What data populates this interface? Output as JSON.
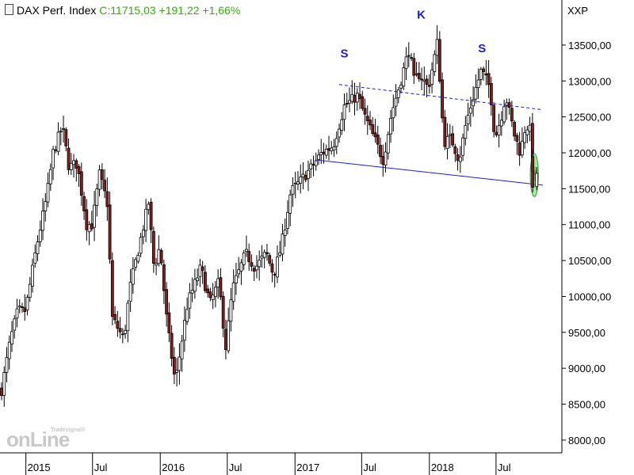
{
  "header": {
    "title": "DAX Perf. Index",
    "quote": "C:11715,03 +191,22 +1,66%"
  },
  "axis_symbol": "XXP",
  "watermark": {
    "top": "Tradesignal®",
    "main": "onLine"
  },
  "colors": {
    "up": "#ffffff",
    "down": "#8b1a1a",
    "wick": "#000000",
    "trend": "#1c1cd0",
    "highlight": "#7fe07f",
    "quote": "#2db200"
  },
  "chart_data": {
    "type": "candlestick",
    "title": "DAX Perf. Index",
    "ylim": [
      7900,
      14050
    ],
    "y_ticks": [
      "13500,00",
      "13000,00",
      "12500,00",
      "12000,00",
      "11500,00",
      "11000,00",
      "10500,00",
      "10000,00",
      "9500,00",
      "9000,00",
      "8500,00",
      "8000,00"
    ],
    "y_tick_values": [
      13500,
      13000,
      12500,
      12000,
      11500,
      11000,
      10500,
      10000,
      9500,
      9000,
      8500,
      8000
    ],
    "x_ticks": [
      "2015",
      "Jul",
      "2016",
      "Jul",
      "2017",
      "Jul",
      "2018",
      "Jul"
    ],
    "x_tick_dates": [
      "2015-01-01",
      "2015-07-01",
      "2016-01-01",
      "2016-07-01",
      "2017-01-01",
      "2017-07-01",
      "2018-01-01",
      "2018-07-01"
    ],
    "date_range": [
      "2014-10-27",
      "2018-10-19"
    ],
    "closing_anchors": [
      [
        "2014-10-27",
        8700
      ],
      [
        "2014-11-20",
        9400
      ],
      [
        "2014-12-10",
        9800
      ],
      [
        "2014-12-31",
        9800
      ],
      [
        "2015-01-30",
        10700
      ],
      [
        "2015-02-27",
        11400
      ],
      [
        "2015-03-16",
        12000
      ],
      [
        "2015-04-10",
        12370
      ],
      [
        "2015-04-28",
        11800
      ],
      [
        "2015-05-20",
        11850
      ],
      [
        "2015-06-15",
        11000
      ],
      [
        "2015-06-30",
        11000
      ],
      [
        "2015-07-20",
        11700
      ],
      [
        "2015-08-10",
        11300
      ],
      [
        "2015-08-24",
        9700
      ],
      [
        "2015-09-24",
        9400
      ],
      [
        "2015-10-10",
        10100
      ],
      [
        "2015-11-30",
        11300
      ],
      [
        "2015-12-15",
        10400
      ],
      [
        "2015-12-31",
        10700
      ],
      [
        "2016-01-20",
        9600
      ],
      [
        "2016-02-11",
        8800
      ],
      [
        "2016-03-15",
        9900
      ],
      [
        "2016-04-20",
        10400
      ],
      [
        "2016-05-15",
        9900
      ],
      [
        "2016-06-08",
        10200
      ],
      [
        "2016-06-27",
        9300
      ],
      [
        "2016-07-15",
        10100
      ],
      [
        "2016-08-20",
        10600
      ],
      [
        "2016-09-15",
        10400
      ],
      [
        "2016-10-15",
        10600
      ],
      [
        "2016-11-04",
        10300
      ],
      [
        "2016-11-25",
        10700
      ],
      [
        "2016-12-20",
        11450
      ],
      [
        "2017-01-15",
        11600
      ],
      [
        "2017-02-15",
        11800
      ],
      [
        "2017-03-15",
        12000
      ],
      [
        "2017-04-15",
        12100
      ],
      [
        "2017-05-15",
        12650
      ],
      [
        "2017-06-20",
        12800
      ],
      [
        "2017-07-10",
        12500
      ],
      [
        "2017-08-29",
        11900
      ],
      [
        "2017-09-20",
        12550
      ],
      [
        "2017-10-15",
        13000
      ],
      [
        "2017-11-07",
        13450
      ],
      [
        "2017-11-20",
        13000
      ],
      [
        "2017-12-05",
        13100
      ],
      [
        "2017-12-29",
        12900
      ],
      [
        "2018-01-23",
        13550
      ],
      [
        "2018-02-09",
        12150
      ],
      [
        "2018-03-01",
        12200
      ],
      [
        "2018-03-23",
        11900
      ],
      [
        "2018-04-10",
        12400
      ],
      [
        "2018-05-01",
        12800
      ],
      [
        "2018-05-22",
        13150
      ],
      [
        "2018-06-15",
        12900
      ],
      [
        "2018-06-28",
        12200
      ],
      [
        "2018-07-15",
        12500
      ],
      [
        "2018-07-27",
        12800
      ],
      [
        "2018-08-20",
        12250
      ],
      [
        "2018-09-05",
        12000
      ],
      [
        "2018-09-20",
        12400
      ],
      [
        "2018-10-02",
        12300
      ],
      [
        "2018-10-11",
        11550
      ],
      [
        "2018-10-19",
        11715
      ]
    ],
    "neckline": {
      "from": [
        "2017-03-01",
        11900
      ],
      "to": [
        "2018-11-05",
        11550
      ],
      "style": "solid"
    },
    "upper_trendline": {
      "from": [
        "2017-05-01",
        12950
      ],
      "to": [
        "2018-11-05",
        12600
      ],
      "style": "dashed"
    },
    "annotations": [
      {
        "text": "S",
        "date": "2017-05-15",
        "y": 13330
      },
      {
        "text": "K",
        "date": "2017-12-10",
        "y": 13870
      },
      {
        "text": "S",
        "date": "2018-05-24",
        "y": 13400
      }
    ],
    "highlight_ellipse": {
      "center": [
        "2018-10-13",
        11690
      ],
      "rx_days": 11,
      "ry_value": 300
    },
    "grid": false,
    "legend": "none"
  }
}
